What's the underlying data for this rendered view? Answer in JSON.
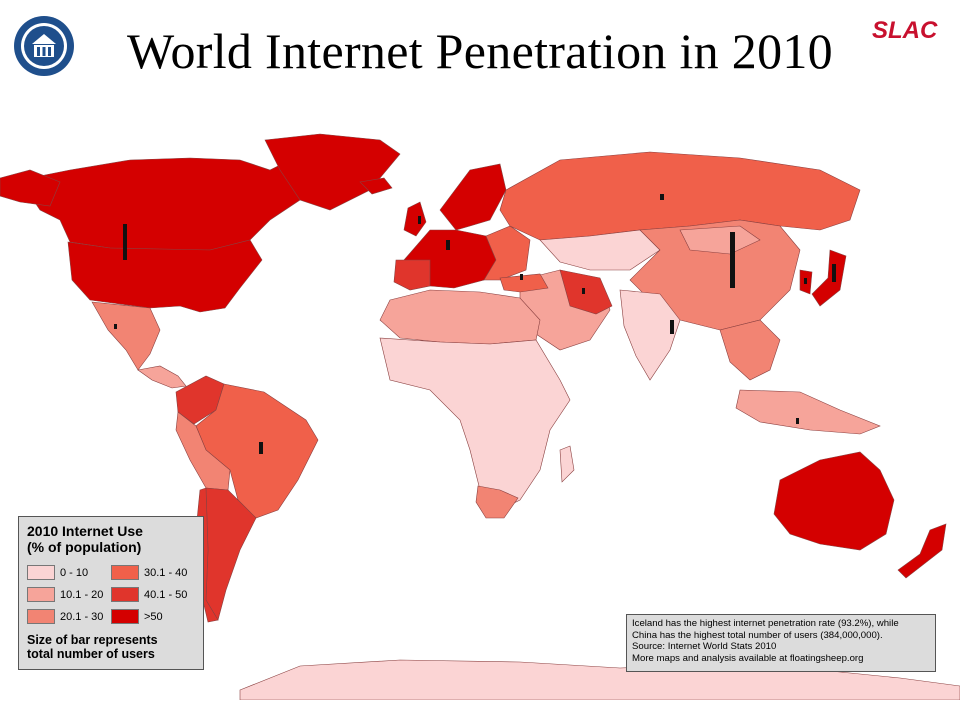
{
  "title": "World Internet Penetration in 2010",
  "logo": {
    "text": "SLAC",
    "color": "#c8102e"
  },
  "seal": {
    "icon": "university-seal-icon",
    "color": "#1f4f8c"
  },
  "legend": {
    "title_line1": "2010 Internet Use",
    "title_line2": "(% of population)",
    "classes": [
      {
        "label": "0 - 10",
        "color": "#fbd4d4"
      },
      {
        "label": "30.1 - 40",
        "color": "#f0604a"
      },
      {
        "label": "10.1 - 20",
        "color": "#f6a49a"
      },
      {
        "label": "40.1 - 50",
        "color": "#e0352c"
      },
      {
        "label": "20.1 - 30",
        "color": "#f28473"
      },
      {
        "label": ">50",
        "color": "#d40000"
      }
    ],
    "note_line1": "Size of bar represents",
    "note_line2": "total number of users"
  },
  "source": {
    "line1": "Iceland has the highest internet penetration rate (93.2%), while",
    "line2": "China has the highest total number of users (384,000,000).",
    "line3": "Source: Internet World Stats 2010",
    "line4": "More maps and analysis available at floatingsheep.org"
  }
}
